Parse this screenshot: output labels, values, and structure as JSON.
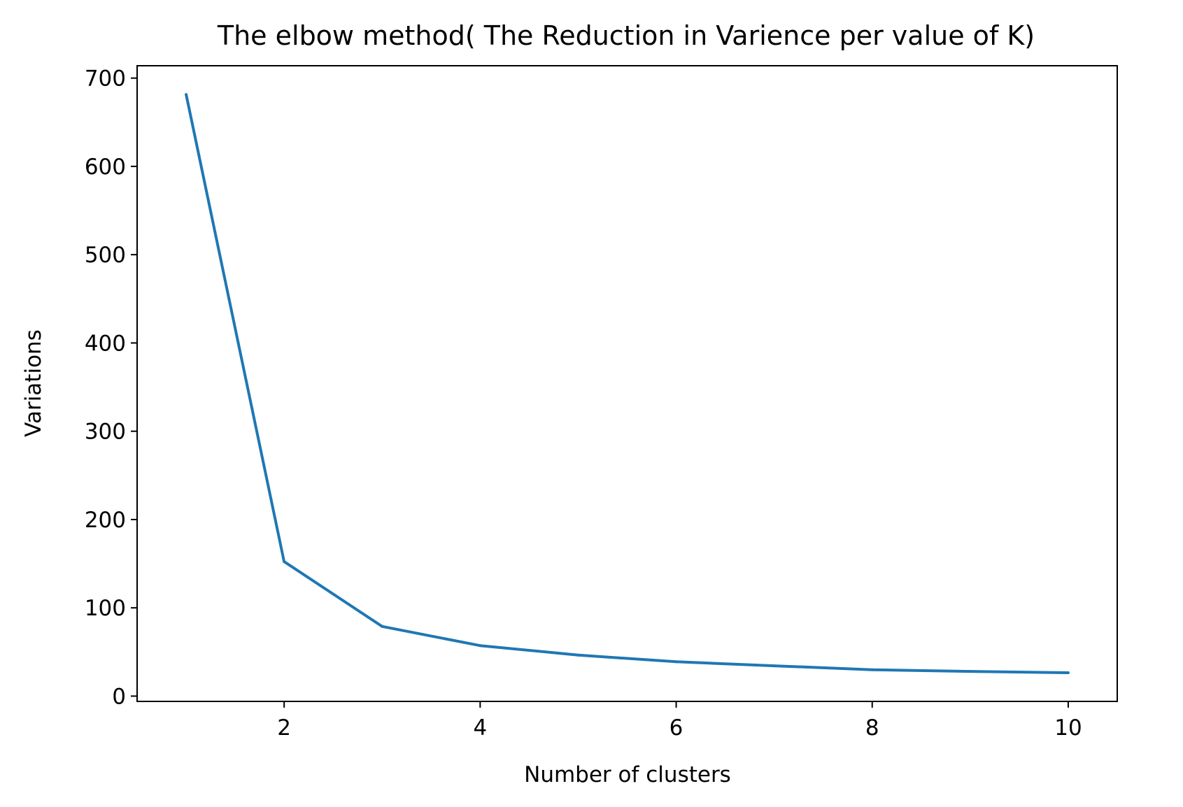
{
  "chart_data": {
    "type": "line",
    "title": "The elbow method( The Reduction in Varience per value of K)",
    "xlabel": "Number of clusters",
    "ylabel": "Variations",
    "xlim": [
      0.5,
      10.5
    ],
    "ylim": [
      -6,
      714
    ],
    "xticks": [
      2,
      4,
      6,
      8,
      10
    ],
    "yticks": [
      0,
      100,
      200,
      300,
      400,
      500,
      600,
      700
    ],
    "grid": false,
    "legend": "none",
    "series": [
      {
        "color": "#1f77b4",
        "x": [
          1,
          2,
          3,
          4,
          5,
          6,
          7,
          8,
          9,
          10
        ],
        "y": [
          681.4,
          152.3,
          78.9,
          57.2,
          46.4,
          38.9,
          34.3,
          29.9,
          28.0,
          26.5
        ]
      }
    ]
  }
}
